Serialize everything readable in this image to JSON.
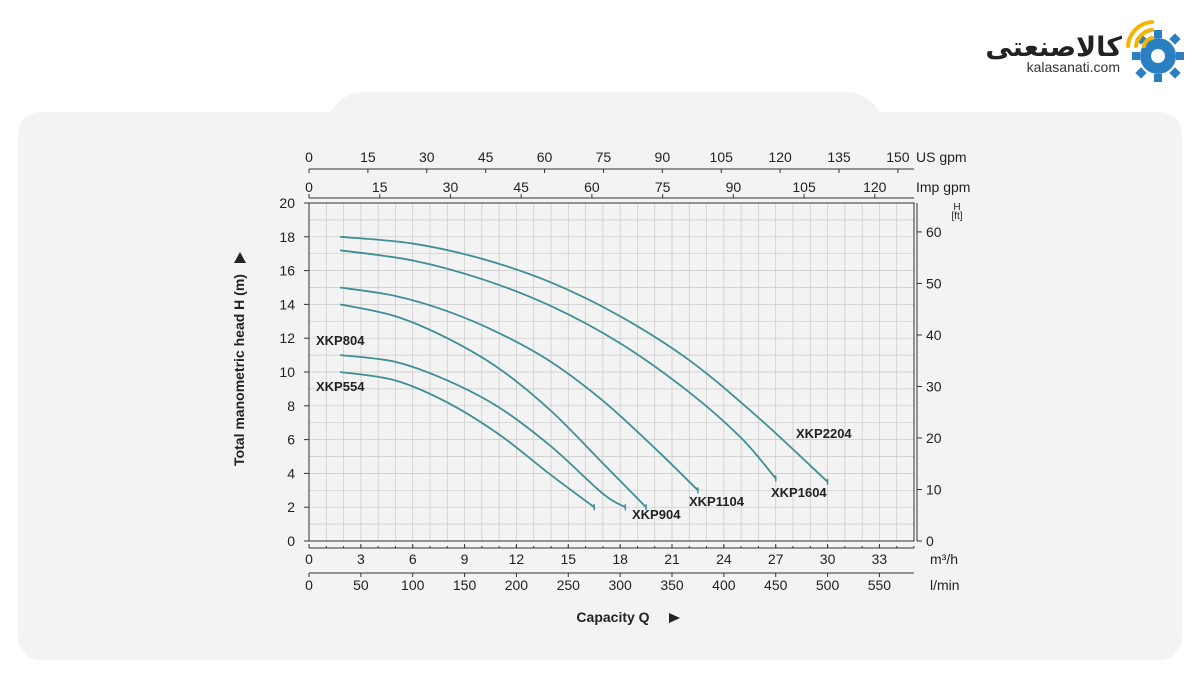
{
  "logo": {
    "name_fa": "کالاصنعتی",
    "domain": "kalasanati.com",
    "colors": {
      "gear": "#2a7fc1",
      "signal": "#f4b400"
    }
  },
  "chart_data": {
    "type": "line",
    "title": "",
    "ylabel": "Total manometric head H (m)",
    "xlabel": "Capacity Q",
    "x_unit": "m³/h",
    "xlim": [
      0,
      35
    ],
    "ylim": [
      0,
      20
    ],
    "x_ticks": [
      0,
      3,
      6,
      9,
      12,
      15,
      18,
      21,
      24,
      27,
      30,
      33
    ],
    "y_ticks": [
      0,
      2,
      4,
      6,
      8,
      10,
      12,
      14,
      16,
      18,
      20
    ],
    "secondary_axes": {
      "lmin": {
        "unit": "l/min",
        "ticks": [
          0,
          50,
          100,
          150,
          200,
          250,
          300,
          350,
          400,
          450,
          500,
          550
        ]
      },
      "us_gpm": {
        "unit": "US gpm",
        "ticks": [
          0,
          15,
          30,
          45,
          60,
          75,
          90,
          105,
          120,
          135,
          150
        ]
      },
      "imp_gpm": {
        "unit": "Imp gpm",
        "ticks": [
          0,
          15,
          30,
          45,
          60,
          75,
          90,
          105,
          120
        ]
      },
      "ft": {
        "unit_top": "H",
        "unit_bottom": "[ft]",
        "ticks": [
          0,
          10,
          20,
          30,
          40,
          50,
          60
        ]
      }
    },
    "line_color": "#3f8f94",
    "grid": true,
    "series": [
      {
        "name": "XKP554",
        "x": [
          1.8,
          5,
          8,
          11,
          14,
          16.5
        ],
        "y": [
          10.0,
          9.5,
          8.2,
          6.3,
          3.9,
          2.0
        ]
      },
      {
        "name": "XKP804",
        "x": [
          1.8,
          5,
          8,
          11,
          14,
          17,
          18.3
        ],
        "y": [
          11.0,
          10.6,
          9.5,
          7.9,
          5.6,
          2.8,
          2.0
        ]
      },
      {
        "name": "XKP904",
        "x": [
          1.8,
          5,
          8,
          11,
          14,
          17,
          19.5
        ],
        "y": [
          14.0,
          13.3,
          12.0,
          10.2,
          7.7,
          4.6,
          2.0
        ]
      },
      {
        "name": "XKP1104",
        "x": [
          1.8,
          5,
          8,
          11,
          14,
          17,
          20,
          22.5
        ],
        "y": [
          15.0,
          14.5,
          13.6,
          12.3,
          10.6,
          8.3,
          5.5,
          3.0
        ]
      },
      {
        "name": "XKP1604",
        "x": [
          1.8,
          6,
          10,
          14,
          18,
          22,
          25,
          27
        ],
        "y": [
          17.2,
          16.6,
          15.5,
          13.9,
          11.7,
          8.8,
          6.1,
          3.7
        ]
      },
      {
        "name": "XKP2204",
        "x": [
          1.8,
          6,
          10,
          14,
          18,
          22,
          26,
          30
        ],
        "y": [
          18.0,
          17.6,
          16.7,
          15.3,
          13.3,
          10.7,
          7.3,
          3.5
        ]
      }
    ]
  }
}
